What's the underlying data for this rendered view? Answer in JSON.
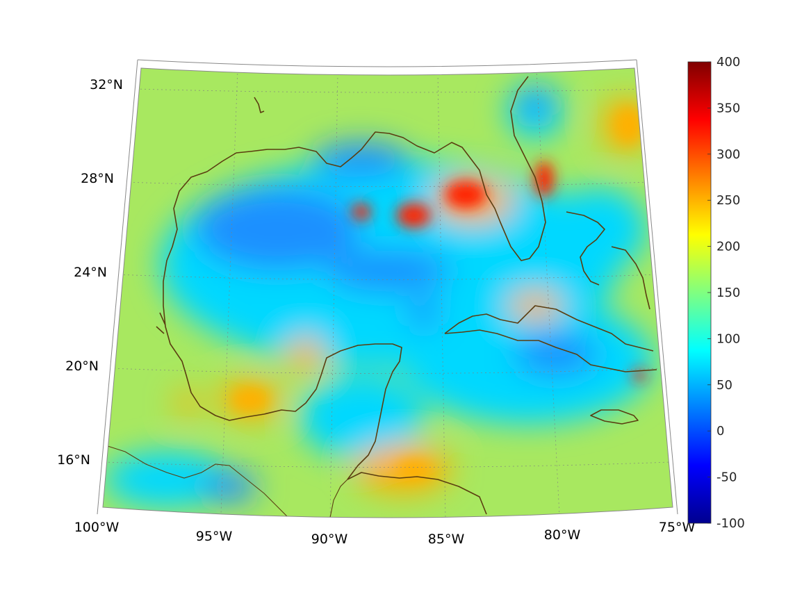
{
  "map": {
    "lat_labels": [
      "32°N",
      "28°N",
      "24°N",
      "20°N",
      "16°N"
    ],
    "lon_labels": [
      "100°W",
      "95°W",
      "90°W",
      "85°W",
      "80°W",
      "75°W"
    ]
  },
  "colorbar": {
    "colormap": "jet",
    "min": -100,
    "max": 400,
    "ticks": [
      "400",
      "350",
      "300",
      "250",
      "200",
      "150",
      "100",
      "50",
      "0",
      "-50",
      "-100"
    ],
    "colors": [
      "#00008f",
      "#0000ff",
      "#0080ff",
      "#00ffff",
      "#80ff80",
      "#ffff00",
      "#ff8000",
      "#ff0000",
      "#800000"
    ]
  },
  "field": {
    "background_color": "#a8e860",
    "low_color": "#1e90ff",
    "mid_color": "#00d8ff",
    "high_color": "#ff2000",
    "warm_color": "#ffb000"
  }
}
